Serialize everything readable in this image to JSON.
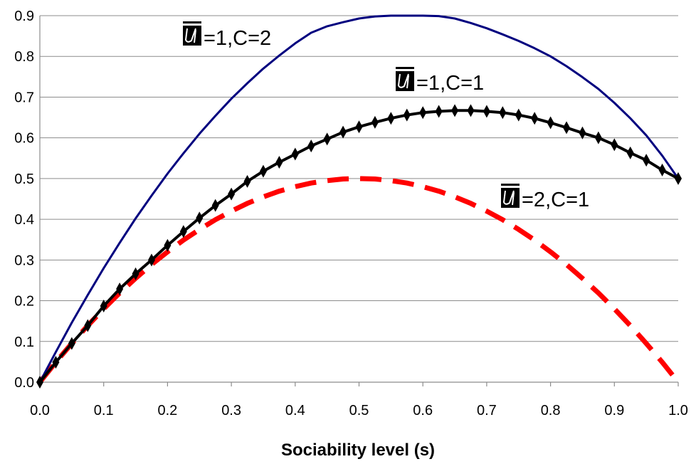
{
  "chart_data": {
    "type": "line",
    "title": "",
    "xlabel": "Sociability level (s)",
    "ylabel": "",
    "xlim": [
      0,
      1
    ],
    "ylim": [
      0,
      0.9
    ],
    "x_ticks": [
      "0.0",
      "0.1",
      "0.2",
      "0.3",
      "0.4",
      "0.5",
      "0.6",
      "0.7",
      "0.8",
      "0.9",
      "1.0"
    ],
    "y_ticks": [
      "0.0",
      "0.1",
      "0.2",
      "0.3",
      "0.4",
      "0.5",
      "0.6",
      "0.7",
      "0.8",
      "0.9"
    ],
    "grid": "horizontal",
    "legend": "none (curves labelled by annotations)",
    "annotations": [
      {
        "series": 0,
        "text": "=1,C=2"
      },
      {
        "series": 1,
        "text": "=1,C=1"
      },
      {
        "series": 2,
        "text": "=2,C=1"
      }
    ],
    "series": [
      {
        "color": "#00007f",
        "style": "solid",
        "x": [
          0,
          0.025,
          0.05,
          0.075,
          0.1,
          0.125,
          0.15,
          0.175,
          0.2,
          0.225,
          0.25,
          0.275,
          0.3,
          0.325,
          0.35,
          0.375,
          0.4,
          0.425,
          0.45,
          0.475,
          0.5,
          0.525,
          0.55,
          0.575,
          0.6,
          0.625,
          0.65,
          0.675,
          0.7,
          0.725,
          0.75,
          0.775,
          0.8,
          0.825,
          0.85,
          0.875,
          0.9,
          0.925,
          0.95,
          0.975,
          1.0
        ],
        "y": [
          0,
          0.074,
          0.146,
          0.214,
          0.28,
          0.342,
          0.402,
          0.458,
          0.512,
          0.562,
          0.61,
          0.654,
          0.696,
          0.734,
          0.77,
          0.802,
          0.832,
          0.858,
          0.874,
          0.884,
          0.893,
          0.898,
          0.9,
          0.9,
          0.9,
          0.899,
          0.893,
          0.882,
          0.869,
          0.854,
          0.838,
          0.82,
          0.8,
          0.776,
          0.749,
          0.72,
          0.686,
          0.648,
          0.606,
          0.556,
          0.5
        ]
      },
      {
        "color": "#000000",
        "style": "solid-diamond",
        "x": [
          0,
          0.025,
          0.05,
          0.075,
          0.1,
          0.125,
          0.15,
          0.175,
          0.2,
          0.225,
          0.25,
          0.275,
          0.3,
          0.325,
          0.35,
          0.375,
          0.4,
          0.425,
          0.45,
          0.475,
          0.5,
          0.525,
          0.55,
          0.575,
          0.6,
          0.625,
          0.65,
          0.675,
          0.7,
          0.725,
          0.75,
          0.775,
          0.8,
          0.825,
          0.85,
          0.875,
          0.9,
          0.925,
          0.95,
          0.975,
          1.0
        ],
        "y": [
          0,
          0.049,
          0.095,
          0.139,
          0.187,
          0.229,
          0.266,
          0.3,
          0.336,
          0.37,
          0.403,
          0.434,
          0.462,
          0.493,
          0.518,
          0.54,
          0.56,
          0.58,
          0.597,
          0.614,
          0.627,
          0.638,
          0.648,
          0.656,
          0.662,
          0.665,
          0.667,
          0.667,
          0.665,
          0.662,
          0.656,
          0.648,
          0.637,
          0.625,
          0.612,
          0.6,
          0.583,
          0.563,
          0.545,
          0.521,
          0.5
        ]
      },
      {
        "color": "#ff0000",
        "style": "dashed",
        "x": [
          0,
          0.025,
          0.05,
          0.075,
          0.1,
          0.125,
          0.15,
          0.175,
          0.2,
          0.225,
          0.25,
          0.275,
          0.3,
          0.325,
          0.35,
          0.375,
          0.4,
          0.425,
          0.45,
          0.475,
          0.5,
          0.525,
          0.55,
          0.575,
          0.6,
          0.625,
          0.65,
          0.675,
          0.7,
          0.725,
          0.75,
          0.775,
          0.8,
          0.825,
          0.85,
          0.875,
          0.9,
          0.925,
          0.95,
          0.975,
          1.0
        ],
        "y": [
          0,
          0.049,
          0.095,
          0.139,
          0.18,
          0.219,
          0.255,
          0.289,
          0.32,
          0.349,
          0.375,
          0.399,
          0.42,
          0.439,
          0.455,
          0.469,
          0.48,
          0.489,
          0.495,
          0.499,
          0.5,
          0.499,
          0.495,
          0.489,
          0.48,
          0.469,
          0.455,
          0.439,
          0.42,
          0.399,
          0.375,
          0.349,
          0.32,
          0.289,
          0.255,
          0.219,
          0.18,
          0.139,
          0.095,
          0.049,
          0
        ]
      }
    ]
  }
}
